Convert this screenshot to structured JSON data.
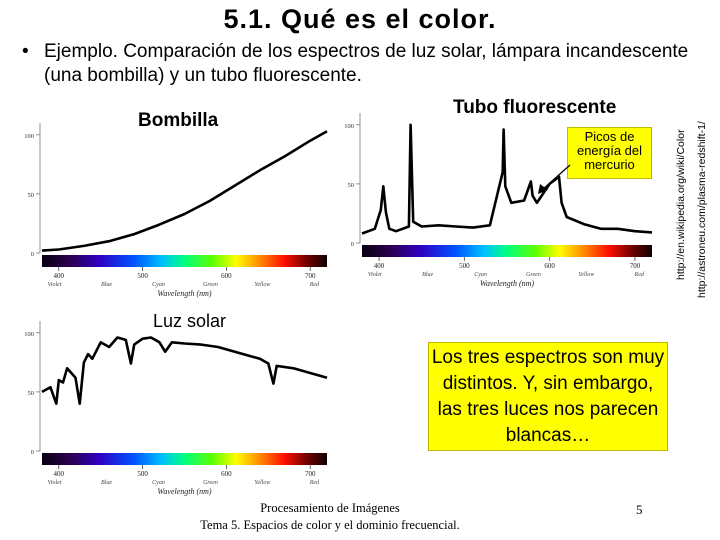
{
  "title": "5.1. Qué es el color.",
  "bullet": {
    "marker": "•",
    "lead": "Ejemplo",
    "text": ". Comparación de los espectros de luz solar, lámpara incandescente (una bombilla) y un tubo fluorescente."
  },
  "labels": {
    "bulb": "Bombilla",
    "tube": "Tubo fluorescente",
    "sun": "Luz solar"
  },
  "annotation": "Picos de energía del mercurio",
  "conclusion": "Los tres espectros son muy distintos. Y, sin embargo, las tres luces nos parecen blancas…",
  "sources": [
    "http://en.wikipedia.org/wiki/Color",
    "http://astroneu.com/plasma-redshift-1/"
  ],
  "footer": {
    "line1": "Procesamiento de Imágenes",
    "line2": "Tema 5. Espacios de color y el dominio frecuencial."
  },
  "page_number": "5",
  "colors": {
    "callout": "#ffff00",
    "annotation_bg": "#ffff00",
    "curve": "#000000"
  },
  "chart_data": [
    {
      "type": "line",
      "id": "bulb",
      "xlabel": "Wavelength (nm)",
      "xticks": [
        400,
        500,
        600,
        700
      ],
      "yticks": [
        0,
        50,
        100
      ],
      "color_names": [
        "Violet",
        "Blue",
        "Cyan",
        "Green",
        "Yellow",
        "Red"
      ],
      "xlim": [
        380,
        720
      ],
      "ylim": [
        0,
        110
      ],
      "x": [
        380,
        400,
        430,
        460,
        490,
        520,
        550,
        580,
        610,
        640,
        670,
        700,
        720
      ],
      "y": [
        2,
        3,
        6,
        10,
        16,
        24,
        33,
        44,
        57,
        70,
        82,
        95,
        103
      ]
    },
    {
      "type": "line",
      "id": "tube",
      "xlabel": "Wavelength (nm)",
      "xticks": [
        400,
        500,
        600,
        700
      ],
      "yticks": [
        0,
        50,
        100
      ],
      "color_names": [
        "Violet",
        "Blue",
        "Cyan",
        "Green",
        "Yellow",
        "Red"
      ],
      "xlim": [
        380,
        720
      ],
      "ylim": [
        0,
        110
      ],
      "x": [
        380,
        395,
        402,
        405,
        408,
        412,
        420,
        435,
        437,
        440,
        450,
        470,
        490,
        510,
        530,
        545,
        546,
        548,
        555,
        570,
        578,
        580,
        585,
        600,
        611,
        614,
        620,
        640,
        660,
        680,
        700,
        720
      ],
      "y": [
        8,
        12,
        28,
        48,
        26,
        12,
        10,
        14,
        100,
        18,
        14,
        15,
        14,
        13,
        15,
        60,
        96,
        48,
        34,
        36,
        52,
        40,
        34,
        50,
        56,
        34,
        22,
        16,
        12,
        12,
        10,
        9
      ]
    },
    {
      "type": "line",
      "id": "sun",
      "xlabel": "Wavelength (nm)",
      "xticks": [
        400,
        500,
        600,
        700
      ],
      "yticks": [
        0,
        50,
        100
      ],
      "color_names": [
        "Violet",
        "Blue",
        "Cyan",
        "Green",
        "Yellow",
        "Red"
      ],
      "xlim": [
        380,
        720
      ],
      "ylim": [
        0,
        110
      ],
      "x": [
        380,
        390,
        397,
        400,
        405,
        410,
        420,
        425,
        430,
        435,
        440,
        450,
        460,
        470,
        480,
        486,
        490,
        500,
        510,
        520,
        527,
        535,
        550,
        570,
        590,
        600,
        620,
        640,
        650,
        656,
        660,
        680,
        700,
        720
      ],
      "y": [
        50,
        54,
        40,
        60,
        58,
        70,
        62,
        40,
        75,
        82,
        78,
        92,
        88,
        96,
        94,
        74,
        90,
        95,
        96,
        92,
        84,
        92,
        91,
        90,
        88,
        86,
        82,
        78,
        74,
        57,
        72,
        70,
        66,
        62
      ]
    }
  ]
}
